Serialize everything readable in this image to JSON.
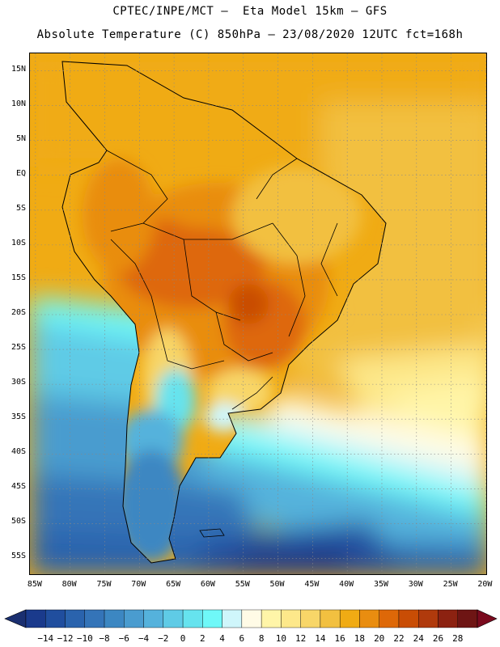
{
  "header": {
    "line1": "CPTEC/INPE/MCT –  Eta Model 15km – GFS",
    "line2": "Absolute Temperature (C) 850hPa – 23/08/2020 12UTC fct=168h"
  },
  "map": {
    "lat_labels": [
      "15N",
      "10N",
      "5N",
      "EQ",
      "5S",
      "10S",
      "15S",
      "20S",
      "25S",
      "30S",
      "35S",
      "40S",
      "45S",
      "50S",
      "55S"
    ],
    "lon_labels": [
      "85W",
      "80W",
      "75W",
      "70W",
      "65W",
      "60W",
      "55W",
      "50W",
      "45W",
      "40W",
      "35W",
      "30W",
      "25W",
      "20W"
    ],
    "lat_range": [
      17.5,
      -57.5
    ],
    "lon_range": [
      -85.8,
      -19.7
    ]
  },
  "colorbar": {
    "labels": [
      "-14",
      "-12",
      "-10",
      "-8",
      "-6",
      "-4",
      "-2",
      "0",
      "2",
      "4",
      "6",
      "8",
      "10",
      "12",
      "14",
      "16",
      "18",
      "20",
      "22",
      "24",
      "26",
      "28"
    ],
    "colors": [
      "#1a3a8c",
      "#204e9e",
      "#2a63ad",
      "#3474b8",
      "#3c87c2",
      "#4a9ccf",
      "#55b2dc",
      "#5fcbe6",
      "#66e3ee",
      "#6ff8f8",
      "#cff6fb",
      "#fffbe6",
      "#fff5a8",
      "#fde88a",
      "#f8d668",
      "#f2c040",
      "#f0ab14",
      "#e98d10",
      "#de6808",
      "#c94d05",
      "#b03a0c",
      "#8c2211",
      "#6e1514"
    ],
    "underflow_color": "#1a2f70",
    "overflow_color": "#7a0a1e"
  }
}
